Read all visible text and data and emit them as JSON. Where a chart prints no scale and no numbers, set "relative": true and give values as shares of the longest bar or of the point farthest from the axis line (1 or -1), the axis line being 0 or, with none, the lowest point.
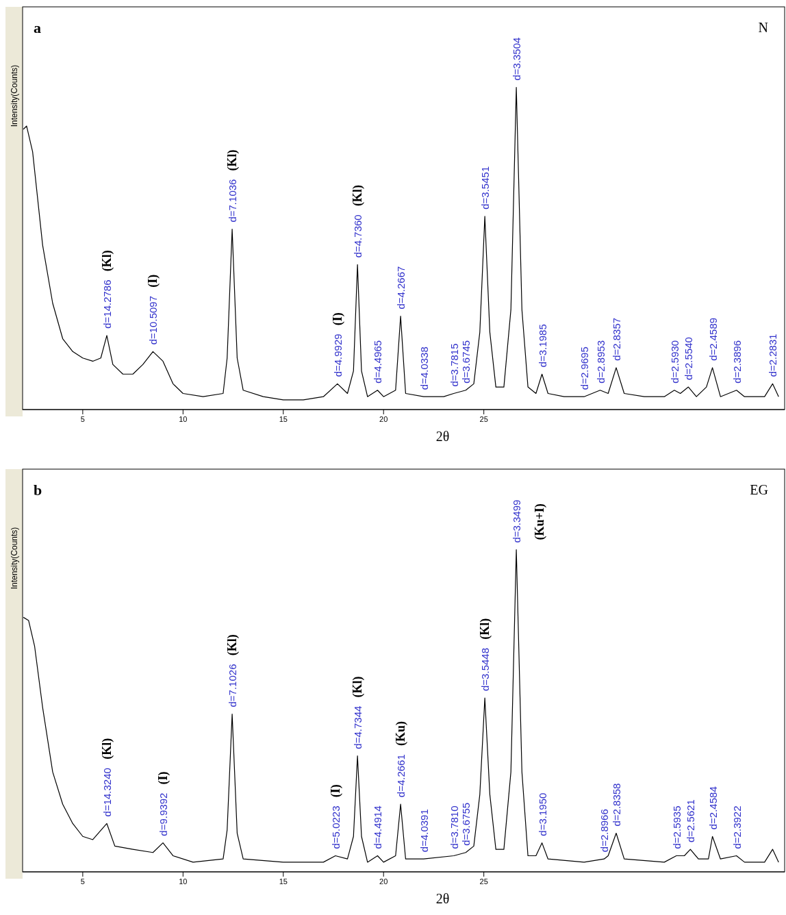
{
  "chart_data": [
    {
      "type": "line",
      "title": "a",
      "xlabel": "2θ",
      "ylabel": "Intensity(Counts)",
      "relative": true,
      "tick_labels": "x",
      "xlim": [
        2,
        40
      ],
      "xticks": [
        5,
        10,
        15,
        20,
        25
      ],
      "series": [
        {
          "color": "#000000",
          "x": [
            2.04,
            2.2,
            2.5,
            3,
            3.5,
            4,
            4.5,
            5,
            5.5,
            5.9,
            6.2,
            6.5,
            7,
            7.5,
            8,
            8.5,
            9,
            9.5,
            10,
            11,
            12,
            12.2,
            12.45,
            12.7,
            13,
            14,
            15,
            16,
            17,
            17.7,
            18.2,
            18.5,
            18.7,
            18.9,
            19.2,
            19.7,
            20,
            20.6,
            20.85,
            21.1,
            22,
            23,
            23.5,
            24.1,
            24.5,
            24.8,
            25.05,
            25.3,
            25.6,
            26,
            26.35,
            26.62,
            26.9,
            27.2,
            27.6,
            27.9,
            28.2,
            29,
            30,
            30.8,
            31.2,
            31.6,
            32,
            33,
            34,
            34.5,
            34.8,
            35.2,
            35.6,
            36.1,
            36.4,
            36.8,
            37.6,
            38,
            39,
            39.4,
            39.7
          ],
          "values": [
            0.87,
            0.88,
            0.8,
            0.51,
            0.33,
            0.22,
            0.18,
            0.16,
            0.15,
            0.16,
            0.23,
            0.14,
            0.11,
            0.11,
            0.14,
            0.18,
            0.15,
            0.08,
            0.05,
            0.04,
            0.05,
            0.16,
            0.56,
            0.16,
            0.06,
            0.04,
            0.03,
            0.03,
            0.04,
            0.08,
            0.05,
            0.12,
            0.45,
            0.12,
            0.04,
            0.06,
            0.04,
            0.06,
            0.29,
            0.05,
            0.04,
            0.04,
            0.05,
            0.06,
            0.08,
            0.24,
            0.6,
            0.24,
            0.07,
            0.07,
            0.31,
            1,
            0.31,
            0.07,
            0.05,
            0.11,
            0.05,
            0.04,
            0.04,
            0.06,
            0.05,
            0.13,
            0.05,
            0.04,
            0.04,
            0.06,
            0.05,
            0.07,
            0.04,
            0.07,
            0.13,
            0.04,
            0.06,
            0.04,
            0.04,
            0.08,
            0.04
          ]
        }
      ],
      "annotations": [
        "N",
        {
          "text": "d=14.2786",
          "x": 6.2,
          "y": 0.23
        },
        "(Kl)",
        {
          "text": "d=10.5097",
          "x": 8.5,
          "y": 0.18
        },
        "(I)",
        {
          "text": "d=7.1036",
          "x": 12.45,
          "y": 0.56
        },
        "(Kl)",
        {
          "text": "d=4.9929",
          "x": 17.7,
          "y": 0.08
        },
        "(I)",
        {
          "text": "d=4.7360",
          "x": 18.7,
          "y": 0.45
        },
        "(Kl)",
        {
          "text": "d=4.4965",
          "x": 19.7,
          "y": 0.06
        },
        {
          "text": "d=4.2667",
          "x": 20.85,
          "y": 0.29
        },
        {
          "text": "d=4.0338",
          "x": 22,
          "y": 0.04
        },
        {
          "text": "d=3.7815",
          "x": 23.5,
          "y": 0.05
        },
        {
          "text": "d=3.6745",
          "x": 24.1,
          "y": 0.06
        },
        {
          "text": "d=3.5451",
          "x": 25.05,
          "y": 0.6
        },
        {
          "text": "d=3.3504",
          "x": 26.62,
          "y": 1
        },
        {
          "text": "d=3.1985",
          "x": 27.9,
          "y": 0.11
        },
        {
          "text": "d=2.9695",
          "x": 30,
          "y": 0.04
        },
        {
          "text": "d=2.8953",
          "x": 30.8,
          "y": 0.06
        },
        {
          "text": "d=2.8357",
          "x": 31.6,
          "y": 0.13
        },
        {
          "text": "d=2.5930",
          "x": 34.5,
          "y": 0.06
        },
        {
          "text": "d=2.5540",
          "x": 35.2,
          "y": 0.07
        },
        {
          "text": "d=2.4589",
          "x": 36.4,
          "y": 0.13
        },
        {
          "text": "d=2.3896",
          "x": 37.6,
          "y": 0.06
        },
        {
          "text": "d=2.2831",
          "x": 39.4,
          "y": 0.08
        }
      ]
    },
    {
      "type": "line",
      "title": "b",
      "xlabel": "2θ",
      "ylabel": "Intensity(Counts)",
      "relative": true,
      "tick_labels": "x",
      "xlim": [
        2,
        40
      ],
      "xticks": [
        5,
        10,
        15,
        20,
        25
      ],
      "series": [
        {
          "color": "#000000",
          "x": [
            2.04,
            2.3,
            2.6,
            3,
            3.5,
            4,
            4.5,
            5,
            5.5,
            6.2,
            6.6,
            7.5,
            8.5,
            9,
            9.5,
            10.5,
            12,
            12.2,
            12.45,
            12.7,
            13,
            15,
            17,
            17.6,
            18.2,
            18.5,
            18.7,
            18.9,
            19.2,
            19.7,
            20,
            20.6,
            20.85,
            21.1,
            22,
            23.5,
            24.1,
            24.5,
            24.8,
            25.05,
            25.3,
            25.6,
            26,
            26.35,
            26.62,
            26.9,
            27.2,
            27.6,
            27.9,
            28.2,
            30,
            31,
            31.2,
            31.6,
            32,
            34,
            34.6,
            35,
            35.3,
            35.7,
            36.2,
            36.4,
            36.8,
            37.6,
            38,
            39,
            39.4,
            39.7
          ],
          "values": [
            0.79,
            0.78,
            0.7,
            0.51,
            0.31,
            0.21,
            0.15,
            0.11,
            0.1,
            0.15,
            0.08,
            0.07,
            0.06,
            0.09,
            0.05,
            0.03,
            0.04,
            0.13,
            0.49,
            0.12,
            0.04,
            0.03,
            0.03,
            0.05,
            0.04,
            0.11,
            0.36,
            0.11,
            0.03,
            0.05,
            0.03,
            0.05,
            0.21,
            0.04,
            0.04,
            0.05,
            0.06,
            0.08,
            0.24,
            0.54,
            0.24,
            0.07,
            0.07,
            0.31,
            1,
            0.31,
            0.05,
            0.05,
            0.09,
            0.04,
            0.03,
            0.04,
            0.05,
            0.12,
            0.04,
            0.03,
            0.05,
            0.05,
            0.07,
            0.04,
            0.04,
            0.11,
            0.04,
            0.05,
            0.03,
            0.03,
            0.07,
            0.03
          ]
        }
      ],
      "annotations": [
        "EG",
        {
          "text": "d=14.3240",
          "x": 6.2,
          "y": 0.15
        },
        "(Kl)",
        {
          "text": "d=9.9392",
          "x": 9,
          "y": 0.09
        },
        "(I)",
        {
          "text": "d=7.1026",
          "x": 12.45,
          "y": 0.49
        },
        "(Kl)",
        {
          "text": "d=5.0223",
          "x": 17.6,
          "y": 0.05
        },
        "(I)",
        {
          "text": "d=4.7344",
          "x": 18.7,
          "y": 0.36
        },
        "(Kl)",
        {
          "text": "d=4.4914",
          "x": 19.7,
          "y": 0.05
        },
        {
          "text": "d=4.2661",
          "x": 20.85,
          "y": 0.21
        },
        "(Ku)",
        {
          "text": "d=4.0391",
          "x": 22,
          "y": 0.04
        },
        {
          "text": "d=3.7810",
          "x": 23.5,
          "y": 0.05
        },
        {
          "text": "d=3.6755",
          "x": 24.1,
          "y": 0.06
        },
        {
          "text": "d=3.5448",
          "x": 25.05,
          "y": 0.54
        },
        "(Kl)",
        {
          "text": "d=3.3499",
          "x": 26.62,
          "y": 1
        },
        "(Ku+I)",
        {
          "text": "d=3.1950",
          "x": 27.9,
          "y": 0.09
        },
        {
          "text": "d=2.8966",
          "x": 31,
          "y": 0.04
        },
        {
          "text": "d=2.8358",
          "x": 31.6,
          "y": 0.12
        },
        {
          "text": "d=2.5935",
          "x": 34.6,
          "y": 0.05
        },
        {
          "text": "d=2.5621",
          "x": 35.3,
          "y": 0.07
        },
        {
          "text": "d=2.4584",
          "x": 36.4,
          "y": 0.11
        },
        {
          "text": "d=2.3922",
          "x": 37.6,
          "y": 0.05
        }
      ]
    }
  ]
}
